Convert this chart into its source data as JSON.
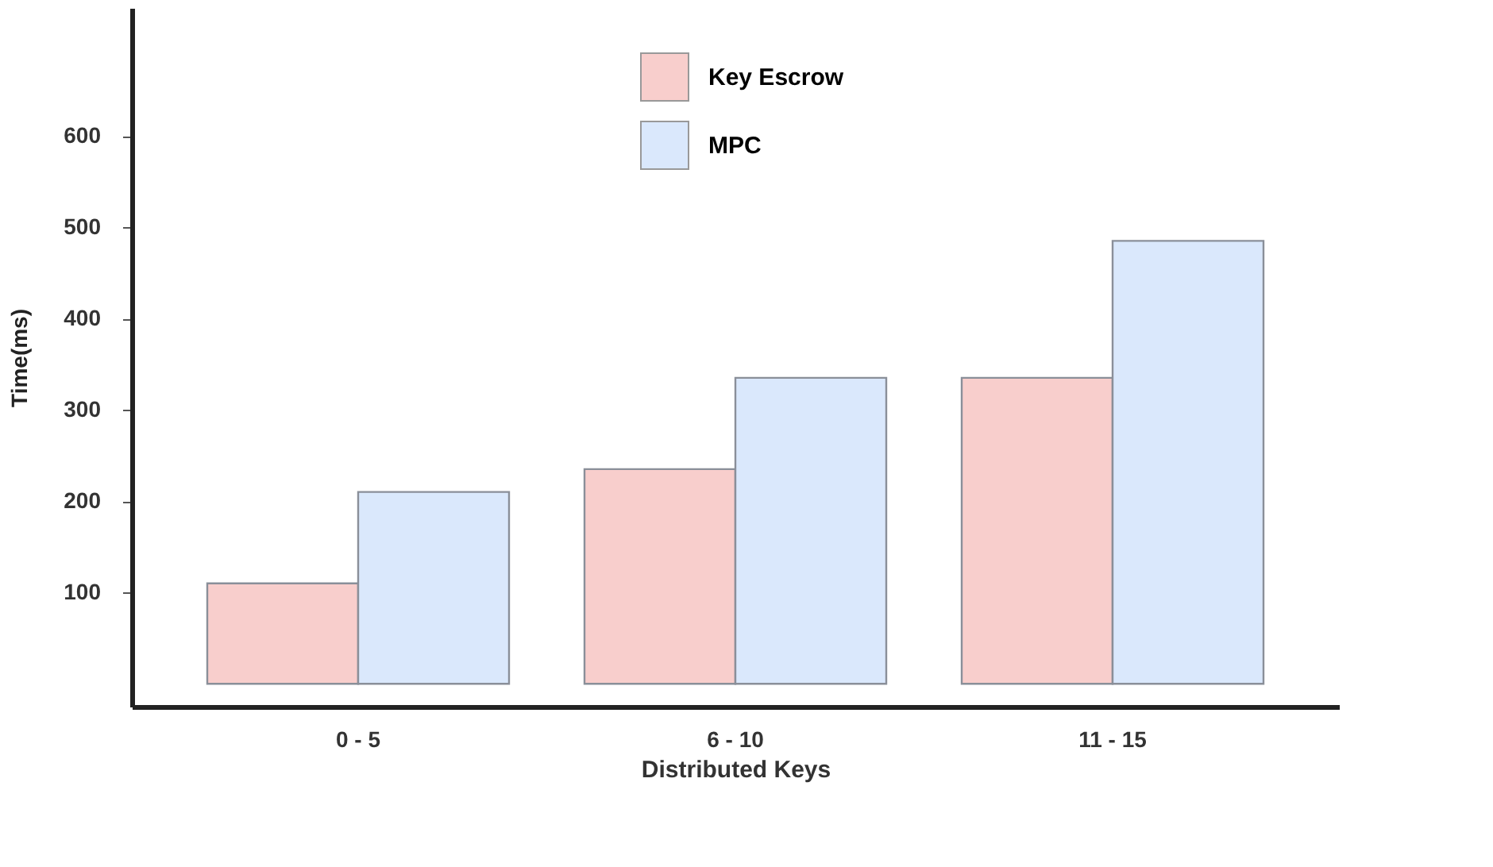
{
  "chart_data": {
    "type": "bar",
    "xlabel": "Distributed Keys",
    "ylabel": "Time(ms)",
    "categories": [
      "0 - 5",
      "6 - 10",
      "11 - 15"
    ],
    "series": [
      {
        "name": "Key Escrow",
        "color": "#f8cecc",
        "values": [
          110,
          235,
          335
        ]
      },
      {
        "name": "MPC",
        "color": "#dae8fc",
        "values": [
          210,
          335,
          485
        ]
      }
    ],
    "ylim": [
      -25,
      740
    ],
    "yticks": [
      100,
      200,
      300,
      400,
      500,
      600
    ],
    "grid": false,
    "legend": "top"
  }
}
